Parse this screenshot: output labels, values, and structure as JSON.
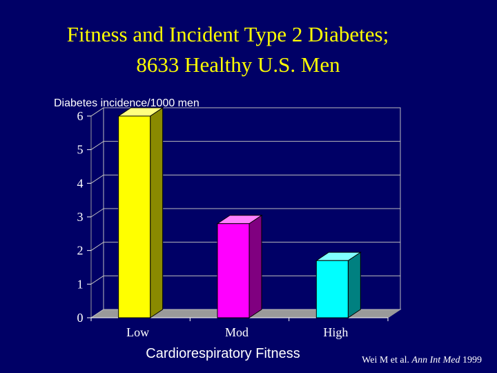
{
  "slide": {
    "title_line1": "Fitness and Incident Type 2 Diabetes;",
    "title_line2": "8633 Healthy U.S. Men",
    "citation_author": "Wei M et al. ",
    "citation_journal": "Ann Int Med",
    "citation_year": " 1999"
  },
  "colors": {
    "background": "#000066",
    "title": "#ffff00",
    "axis_text": "#ffffff"
  },
  "chart_data": {
    "type": "bar",
    "title": "",
    "ylabel": "Diabetes incidence/1000 men",
    "xlabel": "Cardiorespiratory Fitness",
    "categories": [
      "Low",
      "Mod",
      "High"
    ],
    "values": [
      6.0,
      2.8,
      1.7
    ],
    "ylim": [
      0,
      6
    ],
    "yticks": [
      "0",
      "1",
      "2",
      "3",
      "4",
      "5",
      "6"
    ],
    "grid": true,
    "style": "3d-column",
    "bar_colors": [
      {
        "front": "#ffff00",
        "side": "#8a8a00",
        "top": "#ffff80"
      },
      {
        "front": "#ff00ff",
        "side": "#800080",
        "top": "#ff80ff"
      },
      {
        "front": "#00ffff",
        "side": "#008080",
        "top": "#80ffff"
      }
    ]
  }
}
